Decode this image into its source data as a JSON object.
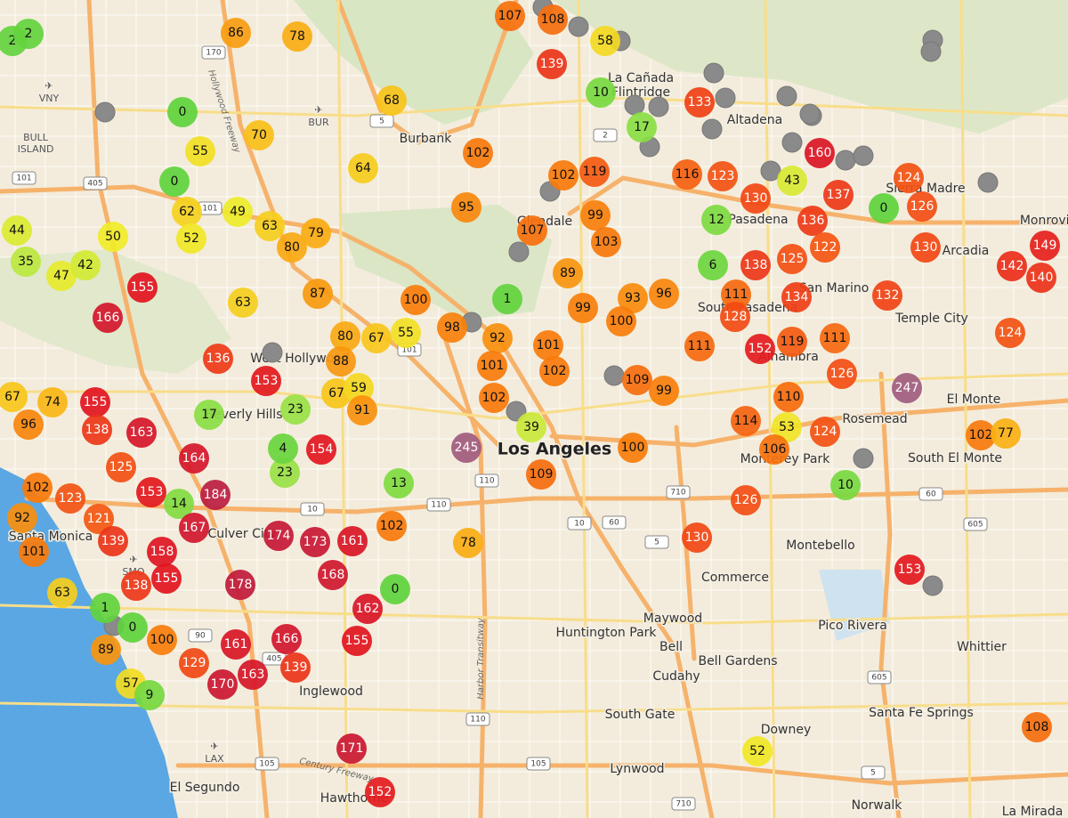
{
  "places": [
    "La Cañada",
    "Flintridge",
    "Altadena",
    "Burbank",
    "Glendale",
    "Pasadena",
    "Sierra Madre",
    "Monrovia",
    "Arcadia",
    "San Marino",
    "South Pasadena",
    "Temple City",
    "West Hollywood",
    "Beverly Hills",
    "Alhambra",
    "El Monte",
    "Rosemead",
    "Los Angeles",
    "Monterey Park",
    "South El Monte",
    "Santa Monica",
    "Culver City",
    "Montebello",
    "Commerce",
    "Maywood",
    "Huntington Park",
    "Pico Rivera",
    "Bell",
    "Bell Gardens",
    "Cudahy",
    "Whittier",
    "South Gate",
    "Santa Fe Springs",
    "Downey",
    "Lynwood",
    "Inglewood",
    "Hawthorne",
    "El Segundo",
    "Norwalk",
    "La Mirada",
    "BULL",
    "ISLAND"
  ],
  "airports": [
    "VNY",
    "BUR",
    "SMO",
    "LAX"
  ],
  "road_labels": [
    "Hollywood Freeway",
    "Harbor Transitway",
    "Century Freeway"
  ],
  "shields": [
    "170",
    "101",
    "405",
    "5",
    "2",
    "101",
    "101",
    "10",
    "110",
    "110",
    "10",
    "60",
    "5",
    "710",
    "60",
    "605",
    "105",
    "105",
    "110",
    "90",
    "710",
    "605",
    "5",
    "405"
  ],
  "sensors": [
    107,
    108,
    139,
    58,
    86,
    78,
    2,
    2,
    0,
    70,
    55,
    68,
    64,
    0,
    62,
    49,
    52,
    63,
    80,
    79,
    50,
    44,
    35,
    47,
    42,
    155,
    166,
    63,
    87,
    100,
    80,
    67,
    55,
    88,
    136,
    153,
    67,
    59,
    91,
    23,
    154,
    23,
    4,
    10,
    17,
    133,
    160,
    102,
    102,
    119,
    116,
    123,
    95,
    107,
    99,
    103,
    89,
    130,
    137,
    124,
    126,
    0,
    43,
    12,
    136,
    138,
    125,
    122,
    130,
    149,
    142,
    140,
    6,
    96,
    111,
    132,
    134,
    1,
    99,
    93,
    100,
    98,
    92,
    101,
    101,
    102,
    128,
    111,
    152,
    119,
    111,
    124,
    126,
    247,
    109,
    99,
    110,
    102,
    39,
    245,
    100,
    109,
    114,
    124,
    53,
    106,
    102,
    77,
    10,
    126,
    130,
    153,
    155,
    138,
    163,
    164,
    125,
    153,
    184,
    14,
    102,
    123,
    92,
    121,
    139,
    101,
    167,
    174,
    158,
    173,
    161,
    155,
    138,
    178,
    168,
    0,
    13,
    102,
    78,
    63,
    1,
    0,
    89,
    100,
    162,
    161,
    166,
    155,
    129,
    170,
    163,
    139,
    57,
    9,
    171,
    152,
    52,
    108,
    96,
    67,
    74,
    17
  ]
}
